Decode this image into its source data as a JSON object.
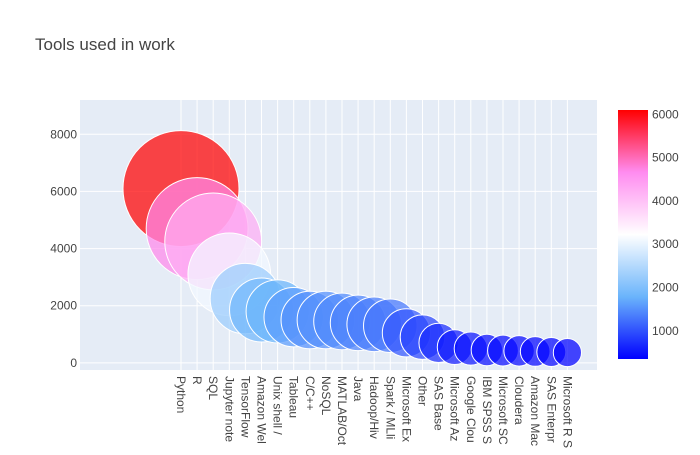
{
  "chart_data": {
    "type": "scatter",
    "title": "Tools used in work",
    "xlabel": "",
    "ylabel": "",
    "ylim": [
      -250,
      9200
    ],
    "yticks": [
      0,
      2000,
      4000,
      6000,
      8000
    ],
    "categories": [
      "Python",
      "R",
      "SQL",
      "Jupyter note",
      "TensorFlow",
      "Amazon Wel",
      "Unix shell /",
      "Tableau",
      "C/C++",
      "NoSQL",
      "MATLAB/Oct",
      "Java",
      "Hadoop/Hiv",
      "Spark / MLli",
      "Microsoft Ex",
      "Other",
      "SAS Base",
      "Microsoft Az",
      "Google Clou",
      "IBM SPSS S",
      "Microsoft SC",
      "Cloudera",
      "Amazon Mac",
      "SAS Enterpr",
      "Microsoft R S"
    ],
    "values": [
      6100,
      4700,
      4250,
      3100,
      2250,
      1850,
      1800,
      1600,
      1500,
      1500,
      1450,
      1400,
      1350,
      1300,
      1050,
      900,
      700,
      550,
      500,
      450,
      430,
      420,
      400,
      380,
      360
    ],
    "marker_size_by": "value",
    "grid": true,
    "colorbar": {
      "range": [
        350,
        6100
      ],
      "ticks": [
        1000,
        2000,
        3000,
        4000,
        5000,
        6000
      ],
      "colors": [
        "#0000ff",
        "#6ab4fb",
        "#ffffff",
        "#ff8cf0",
        "#ff0000"
      ]
    }
  }
}
